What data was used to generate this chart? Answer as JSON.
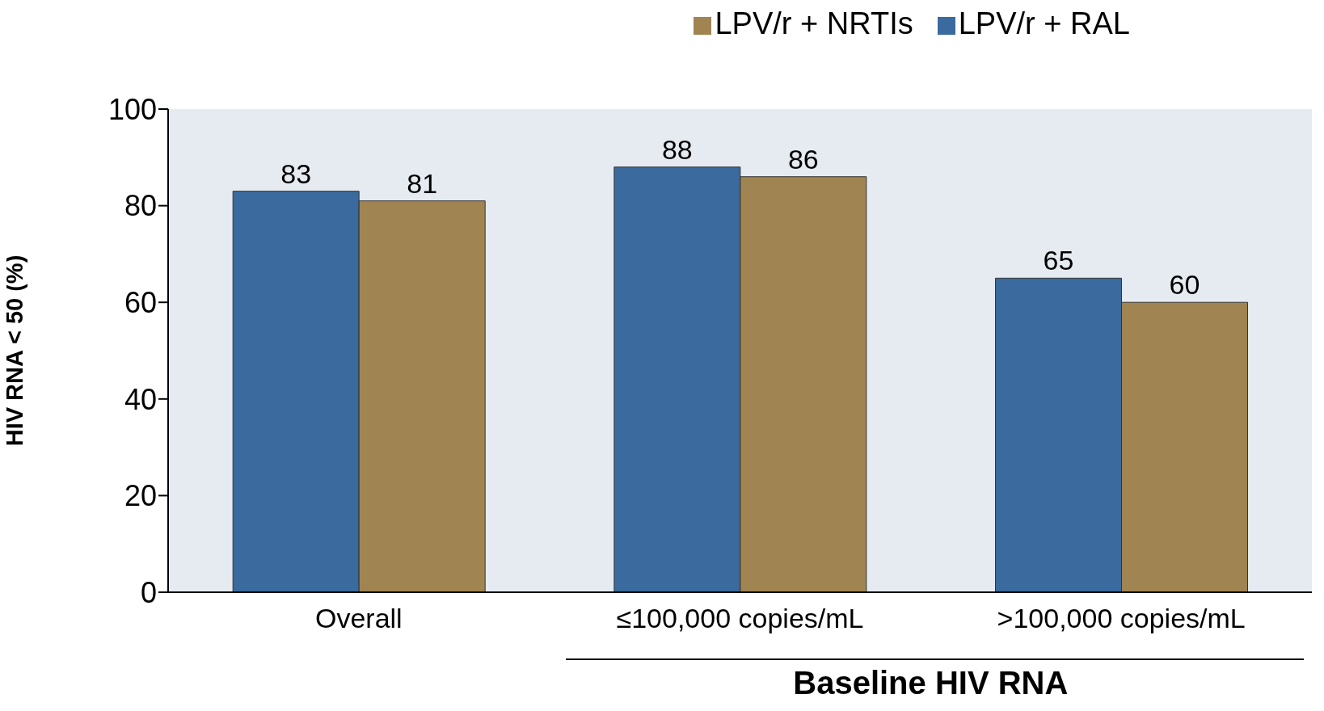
{
  "chart_data": {
    "type": "bar",
    "xlabel": "Baseline HIV RNA",
    "ylabel": "HIV RNA < 50 (%)",
    "categories": [
      "Overall",
      "≤100,000 copies/mL",
      ">100,000 copies/mL"
    ],
    "series": [
      {
        "name": "LPV/r + RAL",
        "color": "#3a6a9e",
        "values": [
          83,
          88,
          65
        ]
      },
      {
        "name": "LPV/r + NRTIs",
        "color": "#a08452",
        "values": [
          81,
          86,
          60
        ]
      }
    ],
    "ylim": [
      0,
      100
    ],
    "yticks": [
      0,
      20,
      40,
      60,
      80,
      100
    ],
    "grid": false,
    "legend": "top right",
    "data_labels": true
  }
}
